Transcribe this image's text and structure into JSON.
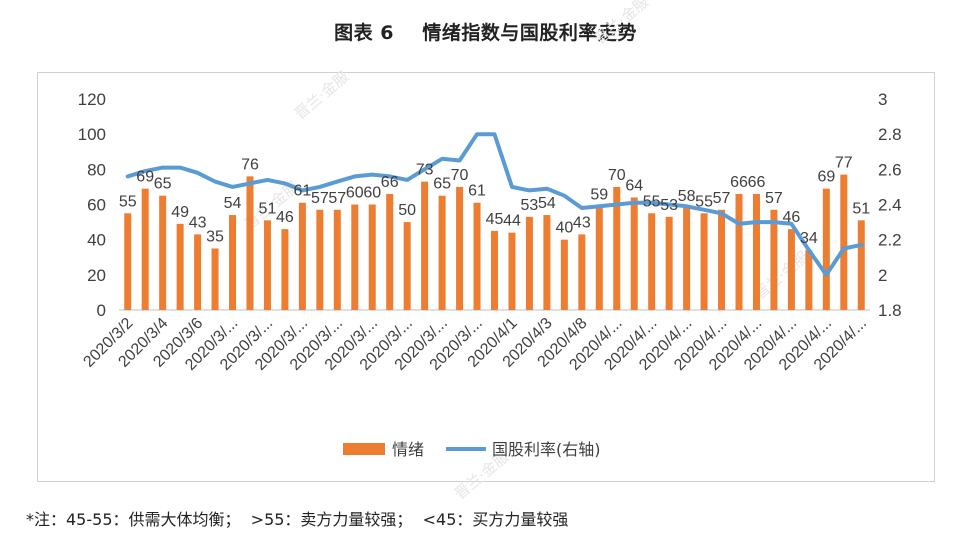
{
  "title": "图表 6    情绪指数与国股利率走势",
  "footnote": "*注：45-55：供需大体均衡；  >55：卖方力量较强；  <45：买方力量较强",
  "colors": {
    "bar": "#ED7D31",
    "line": "#5B9BD5",
    "text": "#404040",
    "axis": "#bfbfbf"
  },
  "chart_data": {
    "type": "bar",
    "x_tick_labels": [
      "2020/3/2",
      "2020/3/4",
      "2020/3/6",
      "2020/3/...",
      "2020/3/...",
      "2020/3/...",
      "2020/3/...",
      "2020/3/...",
      "2020/3/...",
      "2020/3/...",
      "2020/3/...",
      "2020/4/1",
      "2020/4/3",
      "2020/4/8",
      "2020/4/...",
      "2020/4/...",
      "2020/4/...",
      "2020/4/...",
      "2020/4/...",
      "2020/4/...",
      "2020/4/...",
      "2020/4/..."
    ],
    "series": [
      {
        "name": "情绪",
        "type": "bar",
        "axis": "left",
        "values": [
          55,
          69,
          65,
          49,
          43,
          35,
          54,
          76,
          51,
          46,
          61,
          57,
          57,
          60,
          60,
          66,
          50,
          73,
          65,
          70,
          61,
          45,
          44,
          53,
          54,
          40,
          43,
          59,
          70,
          64,
          55,
          53,
          58,
          55,
          57,
          66,
          66,
          57,
          46,
          34,
          69,
          77,
          51
        ]
      },
      {
        "name": "国股利率(右轴)",
        "type": "line",
        "axis": "right",
        "values": [
          2.56,
          2.59,
          2.61,
          2.61,
          2.58,
          2.53,
          2.5,
          2.52,
          2.54,
          2.52,
          2.48,
          2.5,
          2.53,
          2.56,
          2.57,
          2.56,
          2.54,
          2.6,
          2.66,
          2.65,
          2.8,
          2.8,
          2.5,
          2.48,
          2.49,
          2.45,
          2.38,
          2.39,
          2.4,
          2.41,
          2.41,
          2.4,
          2.39,
          2.37,
          2.35,
          2.29,
          2.3,
          2.3,
          2.29,
          2.14,
          2.0,
          2.15,
          2.17
        ]
      }
    ],
    "y_left": {
      "min": 0,
      "max": 120,
      "ticks": [
        0,
        20,
        40,
        60,
        80,
        100,
        120
      ]
    },
    "y_right": {
      "min": 1.8,
      "max": 3.0,
      "ticks": [
        "1.8",
        "2",
        "2.2",
        "2.4",
        "2.6",
        "2.8",
        "3"
      ]
    },
    "legend": {
      "position": "bottom",
      "items": [
        "情绪",
        "国股利率(右轴)"
      ]
    },
    "grid": false
  },
  "watermarks": [
    "晋兰·金服",
    "晋兰·金服",
    "晋兰·金服",
    "晋兰·金服",
    "晋兰·金服"
  ]
}
